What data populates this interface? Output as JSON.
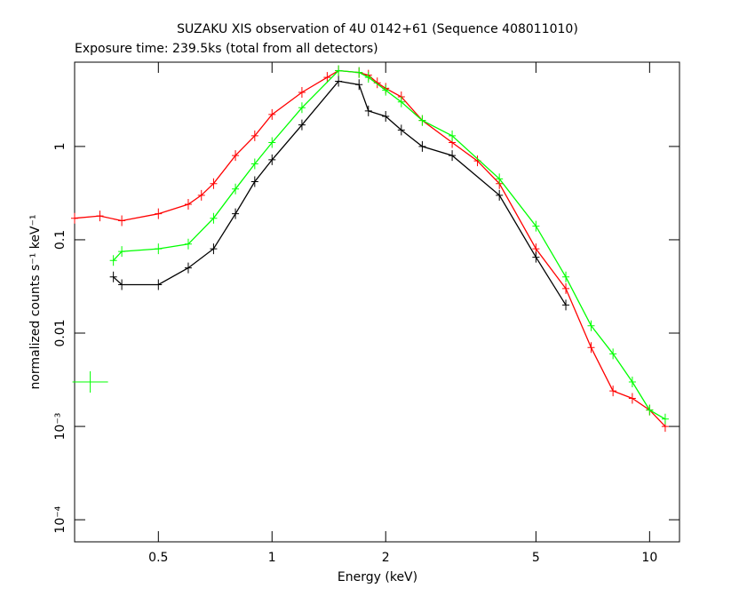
{
  "chart_data": {
    "type": "line",
    "title": "SUZAKU XIS observation of 4U 0142+61 (Sequence 408011010)",
    "subtitle": "Exposure time: 239.5ks (total from all detectors)",
    "xlabel": "Energy (keV)",
    "ylabel": "normalized counts s⁻¹ keV⁻¹",
    "xscale": "log",
    "yscale": "log",
    "xlim": [
      0.3,
      12
    ],
    "ylim": [
      5.8e-05,
      8
    ],
    "xticks": [
      0.5,
      1,
      2,
      5,
      10
    ],
    "yticks": [
      {
        "value": 0.0001,
        "label": "10⁻⁴"
      },
      {
        "value": 0.001,
        "label": "10⁻³"
      },
      0.01,
      0.1,
      1
    ],
    "series": [
      {
        "color": "#ff0000",
        "x": [
          0.3,
          0.35,
          0.4,
          0.5,
          0.6,
          0.65,
          0.7,
          0.8,
          0.9,
          1.0,
          1.2,
          1.4,
          1.5,
          1.7,
          1.8,
          1.9,
          2.0,
          2.2,
          2.5,
          3,
          3.5,
          4,
          5,
          6,
          7,
          8,
          9,
          10,
          11
        ],
        "values": [
          0.17,
          0.18,
          0.16,
          0.19,
          0.24,
          0.3,
          0.4,
          0.8,
          1.3,
          2.2,
          3.8,
          5.5,
          6.5,
          6.2,
          5.8,
          4.8,
          4.2,
          3.4,
          1.9,
          1.1,
          0.7,
          0.4,
          0.08,
          0.03,
          0.007,
          0.0024,
          0.002,
          0.0015,
          0.001
        ]
      },
      {
        "color": "#000000",
        "x": [
          0.38,
          0.4,
          0.5,
          0.6,
          0.7,
          0.8,
          0.9,
          1.0,
          1.2,
          1.5,
          1.7,
          1.8,
          2.0,
          2.2,
          2.5,
          3,
          4,
          5,
          6
        ],
        "values": [
          0.04,
          0.033,
          0.033,
          0.05,
          0.08,
          0.19,
          0.42,
          0.72,
          1.7,
          5,
          4.6,
          2.4,
          2.1,
          1.5,
          1.0,
          0.8,
          0.3,
          0.065,
          0.02
        ]
      },
      {
        "color": "#00ff00",
        "x": [
          0.38,
          0.4,
          0.5,
          0.6,
          0.7,
          0.8,
          0.9,
          1.0,
          1.2,
          1.5,
          1.7,
          1.8,
          2.0,
          2.2,
          2.5,
          3,
          4,
          5,
          6,
          7,
          8,
          9,
          10,
          11
        ],
        "values": [
          0.06,
          0.075,
          0.08,
          0.09,
          0.17,
          0.35,
          0.65,
          1.1,
          2.6,
          6.5,
          6.2,
          5.5,
          4.0,
          3.0,
          1.9,
          1.3,
          0.45,
          0.14,
          0.04,
          0.012,
          0.006,
          0.003,
          0.0015,
          0.0012
        ]
      },
      {
        "color": "#00ff00",
        "x": [
          0.33
        ],
        "values": [
          0.003
        ]
      }
    ]
  }
}
